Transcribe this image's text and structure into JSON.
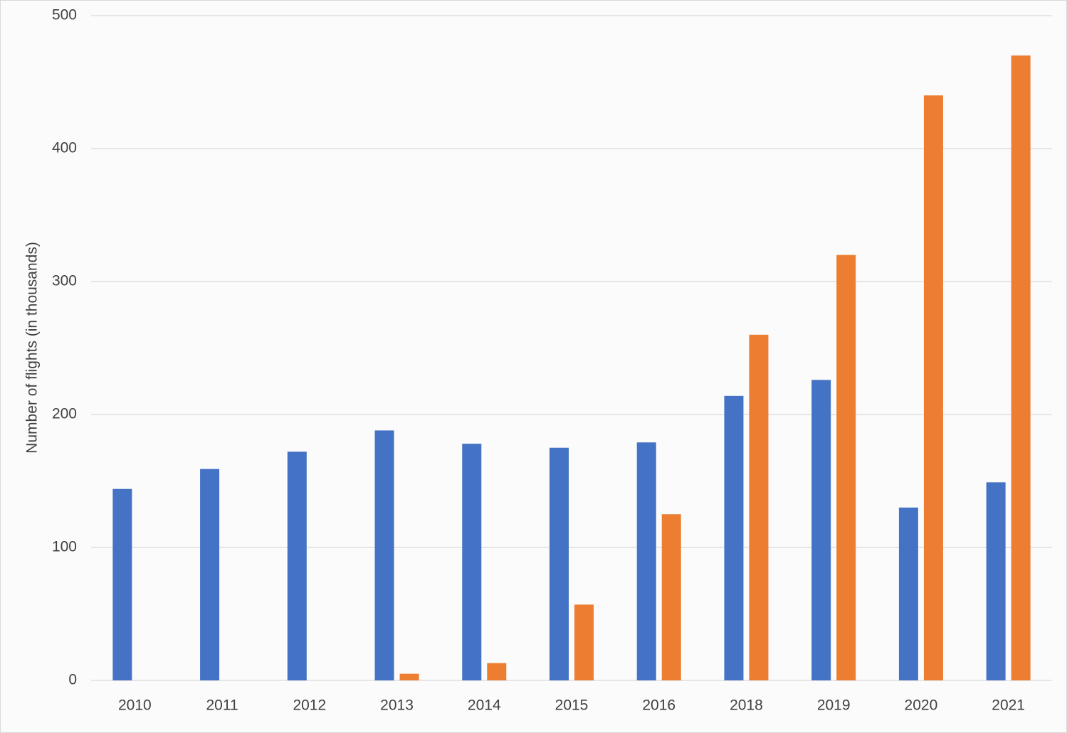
{
  "chart_data": {
    "type": "bar",
    "y_label": "Number of flights (in thousands)",
    "categories": [
      "2010",
      "2011",
      "2012",
      "2013",
      "2014",
      "2015",
      "2016",
      "2018",
      "2019",
      "2020",
      "2021"
    ],
    "series": [
      {
        "color": "#4472c4",
        "values": [
          144,
          159,
          172,
          188,
          178,
          175,
          179,
          214,
          226,
          130,
          149
        ]
      },
      {
        "color": "#ed7d31",
        "values": [
          null,
          null,
          null,
          5,
          13,
          57,
          125,
          260,
          320,
          440,
          470
        ]
      }
    ],
    "ylim": [
      0,
      500
    ],
    "yticks": [
      0,
      100,
      200,
      300,
      400,
      500
    ],
    "grid": true
  }
}
